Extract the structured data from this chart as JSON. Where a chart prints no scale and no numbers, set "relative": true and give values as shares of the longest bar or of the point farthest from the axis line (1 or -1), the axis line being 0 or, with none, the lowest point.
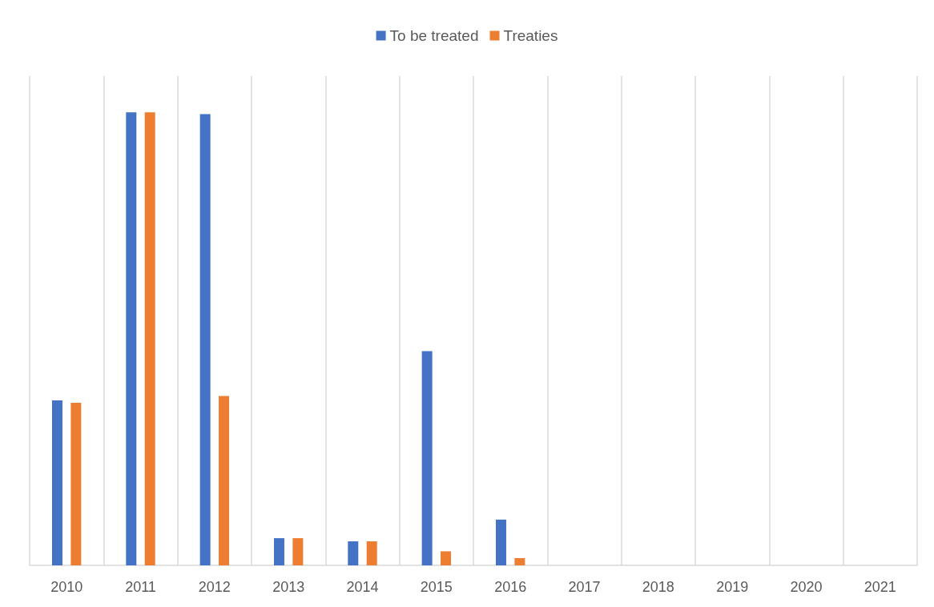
{
  "chart_data": {
    "type": "bar",
    "relative": true,
    "categories": [
      "2010",
      "2011",
      "2012",
      "2013",
      "2014",
      "2015",
      "2016",
      "2017",
      "2018",
      "2019",
      "2020",
      "2021"
    ],
    "series": [
      {
        "name": "To be treated",
        "color": "#4472c4",
        "values": [
          0.364,
          1,
          0.996,
          0.06,
          0.053,
          0.473,
          0.101,
          0,
          0,
          0,
          0,
          0
        ]
      },
      {
        "name": "Treaties",
        "color": "#ed7d31",
        "values": [
          0.359,
          1,
          0.374,
          0.06,
          0.053,
          0.031,
          0.016,
          0,
          0,
          0,
          0,
          0
        ]
      }
    ],
    "grid": "x",
    "legend": "top"
  }
}
